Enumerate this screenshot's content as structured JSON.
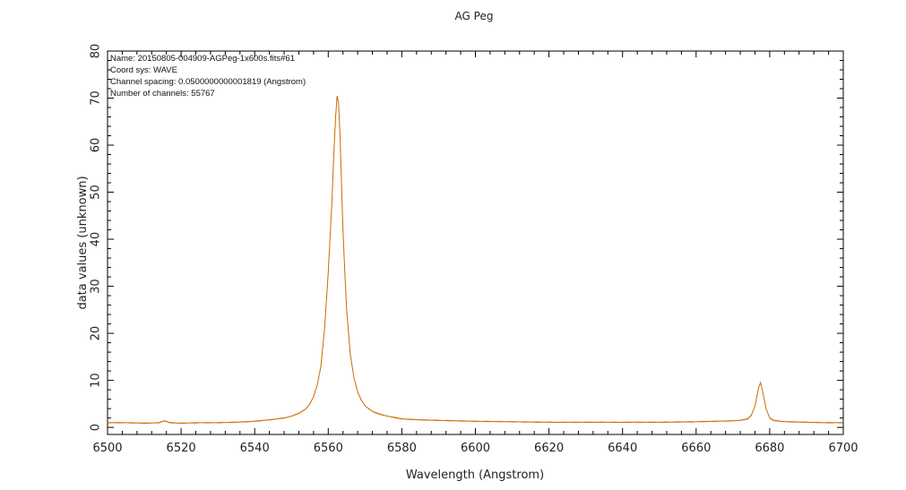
{
  "chart_data": {
    "type": "line",
    "title": "AG Peg",
    "xlabel": "Wavelength (Angstrom)",
    "ylabel": "data values (unknown)",
    "xlim": [
      6500,
      6700
    ],
    "ylim": [
      -1.5,
      80
    ],
    "x_ticks": [
      "6500",
      "6520",
      "6540",
      "6560",
      "6580",
      "6600",
      "6620",
      "6640",
      "6660",
      "6680",
      "6700"
    ],
    "y_ticks": [
      "0",
      "10",
      "20",
      "30",
      "40",
      "50",
      "60",
      "70",
      "80"
    ],
    "grid": false,
    "info_lines": [
      "Name: 20150805-004909-AGPeg-1x600s.fits#61",
      "Coord sys: WAVE",
      "Channel spacing: 0.0500000000001819 (Angstrom)",
      "Number of channels: 55767"
    ],
    "series": [
      {
        "color": "#cc6a00",
        "x": [
          6500,
          6505,
          6510,
          6514,
          6515.5,
          6517,
          6520,
          6525,
          6530,
          6535,
          6540,
          6545,
          6548,
          6550,
          6552,
          6554,
          6555,
          6556,
          6557,
          6558,
          6559,
          6560,
          6561,
          6561.5,
          6562,
          6562.4,
          6562.8,
          6563.2,
          6563.6,
          6564,
          6564.5,
          6565,
          6566,
          6567,
          6568,
          6569,
          6570,
          6572,
          6574,
          6576,
          6578,
          6580,
          6585,
          6590,
          6600,
          6610,
          6620,
          6630,
          6640,
          6650,
          6660,
          6665,
          6670,
          6672,
          6674,
          6675,
          6676,
          6677,
          6677.5,
          6678,
          6679,
          6680,
          6681,
          6683,
          6685,
          6690,
          6695,
          6700
        ],
        "y": [
          1.0,
          1.0,
          0.9,
          1.0,
          1.4,
          1.0,
          0.9,
          1.0,
          1.0,
          1.1,
          1.3,
          1.7,
          2.0,
          2.4,
          3.0,
          4.0,
          5.0,
          6.5,
          9.0,
          13.0,
          21.0,
          33.0,
          48.0,
          58.0,
          66.0,
          70.5,
          69.0,
          62.0,
          52.0,
          42.0,
          33.0,
          25.0,
          15.5,
          10.5,
          7.5,
          5.8,
          4.6,
          3.4,
          2.8,
          2.4,
          2.1,
          1.8,
          1.6,
          1.5,
          1.3,
          1.2,
          1.1,
          1.1,
          1.1,
          1.1,
          1.2,
          1.3,
          1.4,
          1.5,
          1.8,
          2.6,
          4.5,
          8.5,
          9.5,
          8.0,
          4.0,
          2.0,
          1.5,
          1.3,
          1.2,
          1.1,
          1.0,
          1.0
        ]
      }
    ]
  }
}
